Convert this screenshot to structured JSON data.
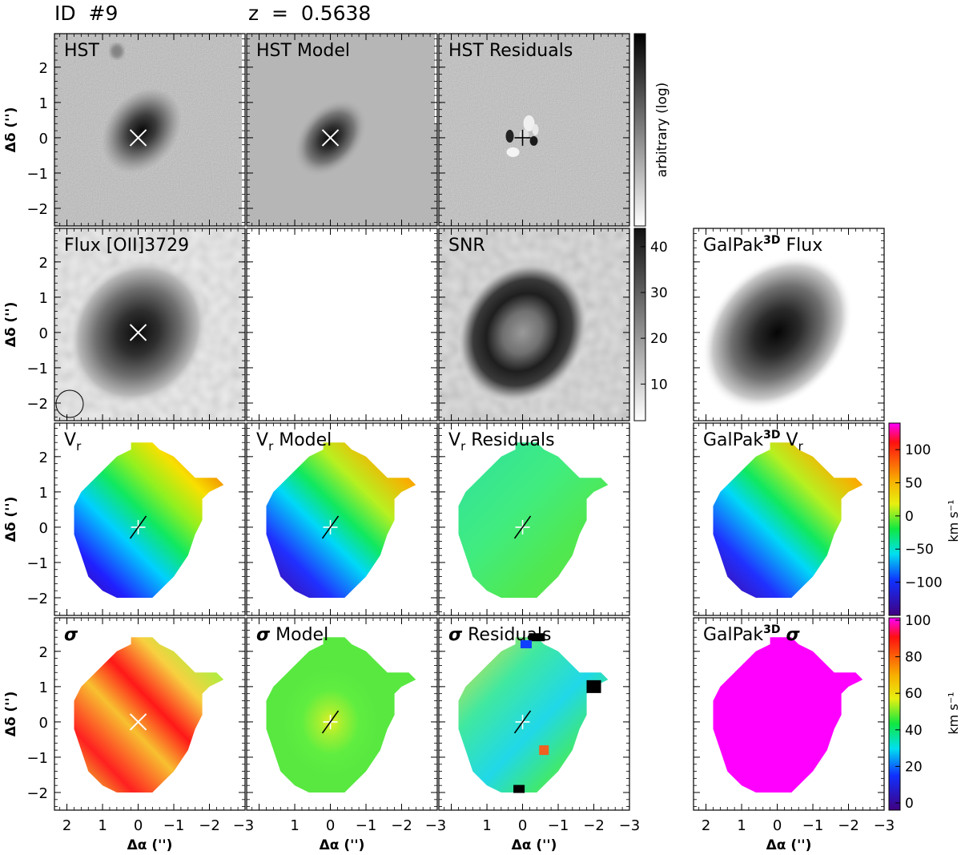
{
  "header": {
    "id_label": "ID  #9",
    "redshift_label": "z  =  0.5638"
  },
  "axes": {
    "ylabel": "Δδ ('')",
    "xlabel": "Δα ('')",
    "yticks": [
      "2",
      "1",
      "0",
      "−1",
      "−2"
    ],
    "xticks": [
      "2",
      "1",
      "0",
      "−1",
      "−2",
      "−3"
    ]
  },
  "panels": {
    "hst": "HST",
    "hst_model": "HST  Model",
    "hst_residuals": "HST  Residuals",
    "flux": "Flux  [OII]3729",
    "snr": "SNR",
    "galpak_prefix": "GalPak",
    "galpak_sup": "3D",
    "galpak_flux_suffix": "Flux",
    "vr": "V",
    "vr_sub": "r",
    "model_suffix": "Model",
    "residuals_suffix": "Residuals",
    "sigma": "σ"
  },
  "colorbars": {
    "hst": {
      "label": "arbitrary  (log)"
    },
    "snr": {
      "ticks": [
        "40",
        "30",
        "20",
        "10"
      ]
    },
    "vr": {
      "ticks": [
        "100",
        "50",
        "0",
        "−50",
        "−100"
      ],
      "unit": "km s⁻¹"
    },
    "sigma": {
      "ticks": [
        "100",
        "80",
        "60",
        "40",
        "20",
        "0"
      ],
      "unit": "km s⁻¹"
    }
  },
  "colors": {
    "axis": "#000000",
    "background": "#ffffff",
    "sigma_model_fill": "#ff00ff"
  }
}
